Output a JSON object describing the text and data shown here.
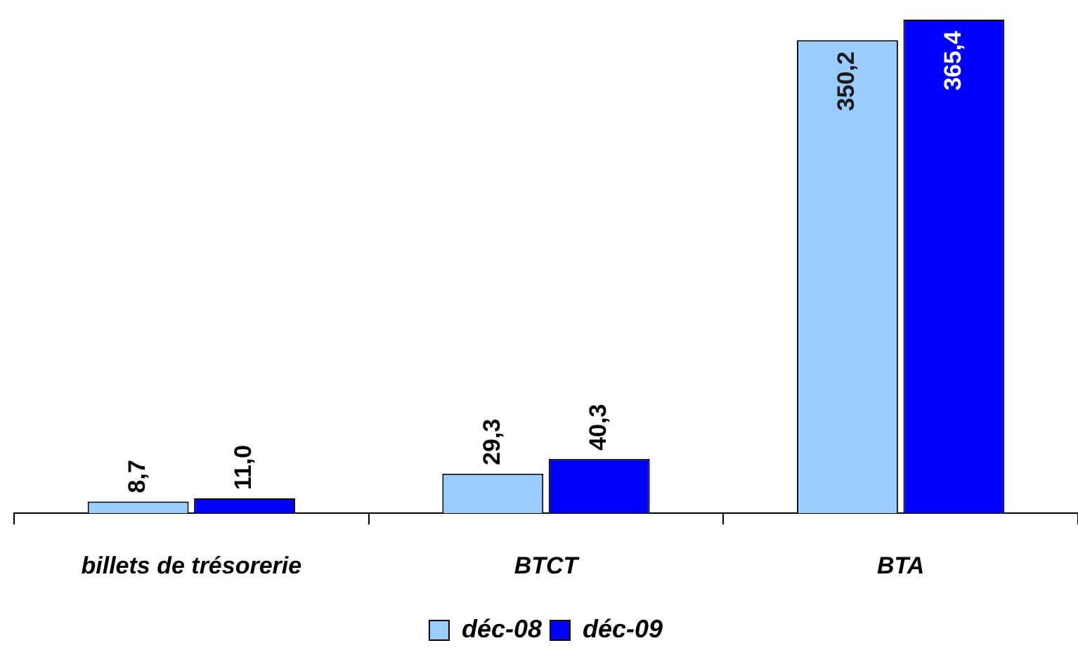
{
  "chart_data": {
    "type": "bar",
    "categories": [
      "billets de trésorerie",
      "BTCT",
      "BTA"
    ],
    "series": [
      {
        "name": "déc-08",
        "color": "#99ccff",
        "values": [
          8.7,
          29.3,
          350.2
        ],
        "value_labels": [
          "8,7",
          "29,3",
          "350,2"
        ]
      },
      {
        "name": "déc-09",
        "color": "#0000ff",
        "values": [
          11.0,
          40.3,
          365.4
        ],
        "value_labels": [
          "11,0",
          "40,3",
          "365,4"
        ]
      }
    ],
    "legend": "bottom",
    "grid": false
  }
}
